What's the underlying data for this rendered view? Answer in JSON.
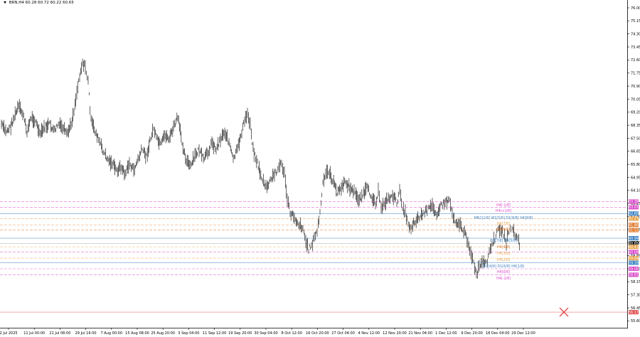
{
  "symbol_info": {
    "symbol": "BRN,H4",
    "ohlc": "60.28 60.72 60.22 60.65"
  },
  "price_scale": {
    "labels": [
      "76.00",
      "75.15",
      "74.30",
      "73.45",
      "72.60",
      "71.75",
      "70.90",
      "70.05",
      "69.20",
      "68.35",
      "67.50",
      "66.65",
      "65.80",
      "64.95",
      "64.10",
      "63.25",
      "62.40",
      "61.55",
      "60.70",
      "59.85",
      "59.00",
      "58.15",
      "57.30",
      "56.45",
      "55.60"
    ]
  },
  "time_scale": {
    "labels": [
      "2 Jul 2025",
      "11 Jul 00:00",
      "21 Jul 08:00",
      "29 Jul 16:00",
      "7 Aug 00:00",
      "15 Aug 08:00",
      "25 Aug 20:00",
      "3 Sep 04:00",
      "11 Sep 12:00",
      "19 Sep 20:00",
      "30 Sep 04:00",
      "8 Oct 12:00",
      "16 Oct 20:00",
      "27 Oct 04:00",
      "4 Nov 12:00",
      "12 Nov 20:00",
      "21 Nov 04:00",
      "1 Dec 12:00",
      "9 Dec 20:00",
      "18 Dec 04:00",
      "29 Dec 12:00"
    ]
  },
  "levels": {
    "price_badges": [
      {
        "value": "63.38",
        "color": "#d946c8"
      },
      {
        "value": "63.01",
        "color": "#d946c8"
      },
      {
        "value": "62.60",
        "color": "#3b82c4"
      },
      {
        "value": "62.27",
        "color": "#e9a24a"
      },
      {
        "value": "61.86",
        "color": "#e07a2e"
      },
      {
        "value": "61.52",
        "color": "#e07a2e"
      },
      {
        "value": "60.99",
        "color": "#3b82c4"
      },
      {
        "value": "60.65",
        "color": "#111111"
      },
      {
        "value": "60.43",
        "color": "#e9a24a"
      },
      {
        "value": "60.09",
        "color": "#d946c8"
      },
      {
        "value": "59.69",
        "color": "#e9a24a"
      },
      {
        "value": "59.39",
        "color": "#3b82c4"
      },
      {
        "value": "59.00",
        "color": "#d946c8"
      },
      {
        "value": "58.61",
        "color": "#d946c8"
      },
      {
        "value": "56.17",
        "color": "#e05050"
      }
    ],
    "tags": [
      {
        "text": "H4[-1/8]",
        "color": "#d946c8"
      },
      {
        "text": "H4[+1/8]",
        "color": "#d946c8"
      },
      {
        "text": "MN1[1/8] W1[5/8] D1[8/8] H4[8/8]",
        "color": "#3b82c4"
      },
      {
        "text": "H4[7/8]",
        "color": "#e9a24a"
      },
      {
        "text": "H4[6/8]",
        "color": "#e07a2e"
      },
      {
        "text": "D1[7/8] H4[5/8]",
        "color": "#3b82c4"
      },
      {
        "text": "H4[4/8]",
        "color": "#e07a2e"
      },
      {
        "text": "H4[3/8]",
        "color": "#e9a24a"
      },
      {
        "text": "H4[2/8]",
        "color": "#e9a24a"
      },
      {
        "text": "W1[4/8] D1[6/8] H4[1/8]",
        "color": "#3b82c4"
      },
      {
        "text": "H4[0/8]",
        "color": "#d946c8"
      },
      {
        "text": "H4[-2/8]",
        "color": "#d946c8"
      }
    ]
  },
  "colors": {
    "candles": "#222222",
    "marker": "#e05050"
  },
  "icons": {
    "close_marker": "x-cross-icon"
  }
}
